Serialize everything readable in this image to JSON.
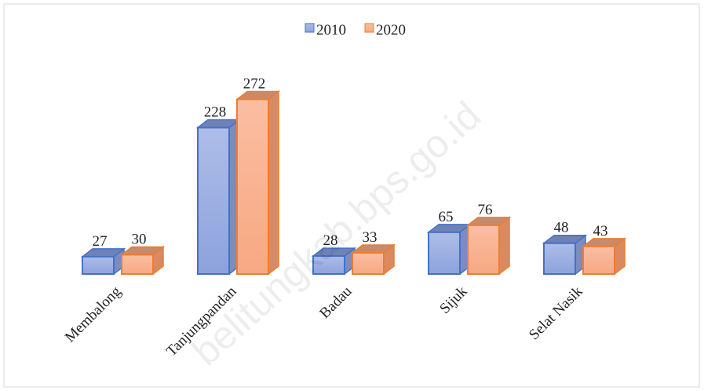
{
  "chart_data": {
    "type": "bar3d",
    "categories": [
      "Membalong",
      "Tanjungpandan",
      "Badau",
      "Sijuk",
      "Selat Nasik"
    ],
    "series": [
      {
        "name": "2010",
        "color": "#4472c4",
        "values": [
          27,
          228,
          28,
          65,
          48
        ]
      },
      {
        "name": "2020",
        "color": "#ed7d31",
        "values": [
          30,
          272,
          33,
          76,
          43
        ]
      }
    ],
    "legend": "top",
    "watermark": "belitungkab.bps.go.id"
  }
}
